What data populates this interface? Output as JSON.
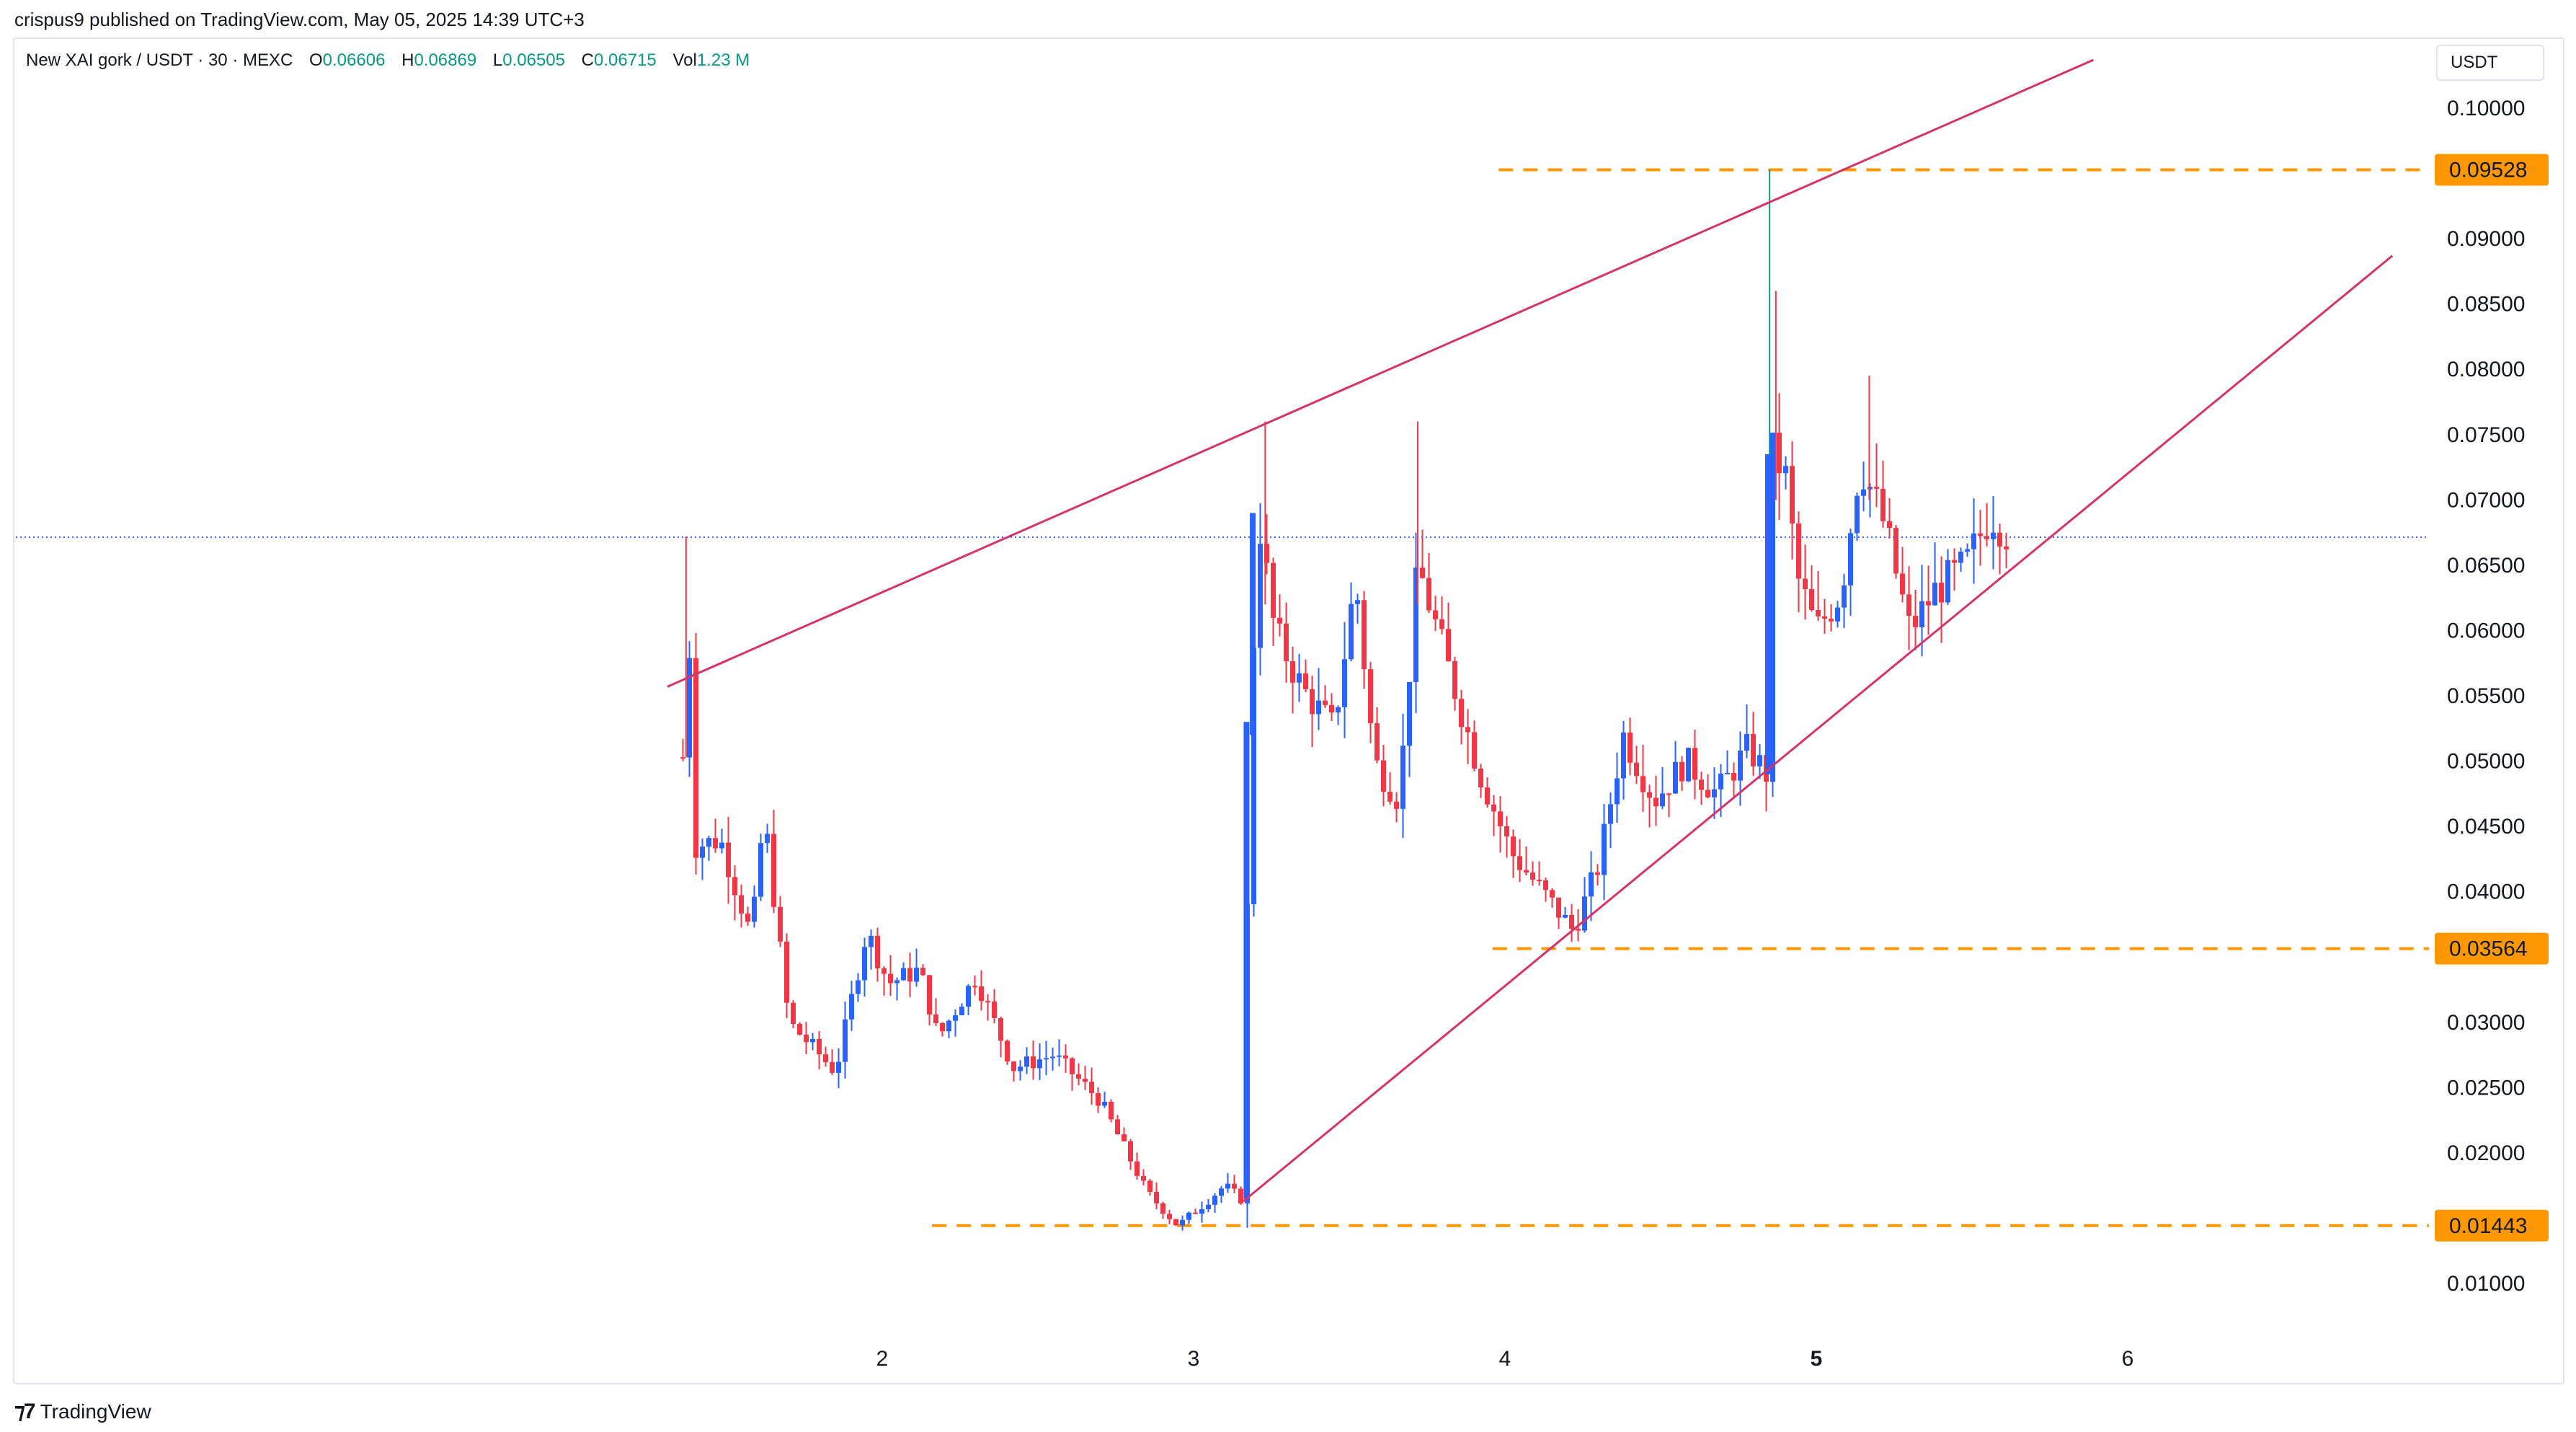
{
  "header": {
    "publisher_line": "crispus9 published on TradingView.com, May 05, 2025 14:39 UTC+3"
  },
  "legend": {
    "symbol": "New XAI gork / USDT · 30 · MEXC",
    "open_label": "O",
    "open_value": "0.06606",
    "high_label": "H",
    "high_value": "0.06869",
    "low_label": "L",
    "low_value": "0.06505",
    "close_label": "C",
    "close_value": "0.06715",
    "volume_label": "Vol",
    "volume_value": "1.23 M"
  },
  "currency_button": "USDT",
  "footer": {
    "brand": "TradingView"
  },
  "colors": {
    "up": "#2962ff",
    "down": "#f23645",
    "trendline": "#d6336c",
    "level": "#ff9800",
    "last_price_line": "#2962ff",
    "axis_text": "#131722"
  },
  "chart_data": {
    "type": "candlestick",
    "ylim": [
      0.006,
      0.104
    ],
    "y_ticks": [
      {
        "value": 0.1,
        "label": "0.10000"
      },
      {
        "value": 0.09,
        "label": "0.09000"
      },
      {
        "value": 0.085,
        "label": "0.08500"
      },
      {
        "value": 0.08,
        "label": "0.08000"
      },
      {
        "value": 0.075,
        "label": "0.07500"
      },
      {
        "value": 0.07,
        "label": "0.07000"
      },
      {
        "value": 0.065,
        "label": "0.06500"
      },
      {
        "value": 0.06,
        "label": "0.06000"
      },
      {
        "value": 0.055,
        "label": "0.05500"
      },
      {
        "value": 0.05,
        "label": "0.05000"
      },
      {
        "value": 0.045,
        "label": "0.04500"
      },
      {
        "value": 0.04,
        "label": "0.04000"
      },
      {
        "value": 0.03,
        "label": "0.03000"
      },
      {
        "value": 0.025,
        "label": "0.02500"
      },
      {
        "value": 0.02,
        "label": "0.02000"
      },
      {
        "value": 0.01,
        "label": "0.01000"
      }
    ],
    "x_ticks": [
      {
        "day": 2,
        "label": "2",
        "bold": false
      },
      {
        "day": 3,
        "label": "3",
        "bold": false
      },
      {
        "day": 4,
        "label": "4",
        "bold": false
      },
      {
        "day": 5,
        "label": "5",
        "bold": true
      },
      {
        "day": 6,
        "label": "6",
        "bold": false
      }
    ],
    "price_levels": [
      {
        "value": 0.09528,
        "label": "0.09528",
        "from_day": 3.98
      },
      {
        "value": 0.03564,
        "label": "0.03564",
        "from_day": 3.96
      },
      {
        "value": 0.01443,
        "label": "0.01443",
        "from_day": 2.16
      }
    ],
    "last_price": 0.06715,
    "trendlines": [
      {
        "from": [
          1.31,
          0.0557
        ],
        "to": [
          5.89,
          0.1037
        ]
      },
      {
        "from": [
          3.16,
          0.0163
        ],
        "to": [
          6.85,
          0.0887
        ]
      }
    ],
    "ohlc_points": [
      {
        "day": 1.36,
        "price": 0.0503
      },
      {
        "day": 1.37,
        "price": 0.0672
      },
      {
        "day": 1.4,
        "price": 0.0435
      },
      {
        "day": 1.48,
        "price": 0.044
      },
      {
        "day": 1.58,
        "price": 0.0365
      },
      {
        "day": 1.62,
        "price": 0.046
      },
      {
        "day": 1.7,
        "price": 0.03
      },
      {
        "day": 1.78,
        "price": 0.028
      },
      {
        "day": 1.85,
        "price": 0.0262
      },
      {
        "day": 1.95,
        "price": 0.037
      },
      {
        "day": 2.02,
        "price": 0.033
      },
      {
        "day": 2.12,
        "price": 0.034
      },
      {
        "day": 2.18,
        "price": 0.0288
      },
      {
        "day": 2.3,
        "price": 0.0335
      },
      {
        "day": 2.42,
        "price": 0.0265
      },
      {
        "day": 2.55,
        "price": 0.0275
      },
      {
        "day": 2.7,
        "price": 0.024
      },
      {
        "day": 2.85,
        "price": 0.017
      },
      {
        "day": 2.95,
        "price": 0.0144
      },
      {
        "day": 3.1,
        "price": 0.0175
      },
      {
        "day": 3.16,
        "price": 0.0163
      },
      {
        "day": 3.18,
        "price": 0.052
      },
      {
        "day": 3.21,
        "price": 0.0685
      },
      {
        "day": 3.26,
        "price": 0.06
      },
      {
        "day": 3.35,
        "price": 0.0555
      },
      {
        "day": 3.45,
        "price": 0.0525
      },
      {
        "day": 3.52,
        "price": 0.064
      },
      {
        "day": 3.58,
        "price": 0.05
      },
      {
        "day": 3.66,
        "price": 0.047
      },
      {
        "day": 3.72,
        "price": 0.065
      },
      {
        "day": 3.82,
        "price": 0.057
      },
      {
        "day": 3.92,
        "price": 0.049
      },
      {
        "day": 4.02,
        "price": 0.043
      },
      {
        "day": 4.12,
        "price": 0.04
      },
      {
        "day": 4.22,
        "price": 0.037
      },
      {
        "day": 4.3,
        "price": 0.042
      },
      {
        "day": 4.38,
        "price": 0.052
      },
      {
        "day": 4.48,
        "price": 0.047
      },
      {
        "day": 4.58,
        "price": 0.05
      },
      {
        "day": 4.68,
        "price": 0.0475
      },
      {
        "day": 4.78,
        "price": 0.051
      },
      {
        "day": 4.84,
        "price": 0.049
      },
      {
        "day": 4.86,
        "price": 0.0735
      },
      {
        "day": 4.9,
        "price": 0.072
      },
      {
        "day": 4.94,
        "price": 0.064
      },
      {
        "day": 5.0,
        "price": 0.06
      },
      {
        "day": 5.08,
        "price": 0.063
      },
      {
        "day": 5.14,
        "price": 0.073
      },
      {
        "day": 5.22,
        "price": 0.068
      },
      {
        "day": 5.3,
        "price": 0.06
      },
      {
        "day": 5.38,
        "price": 0.063
      },
      {
        "day": 5.48,
        "price": 0.065
      },
      {
        "day": 5.56,
        "price": 0.069
      },
      {
        "day": 5.62,
        "price": 0.0672
      }
    ]
  }
}
